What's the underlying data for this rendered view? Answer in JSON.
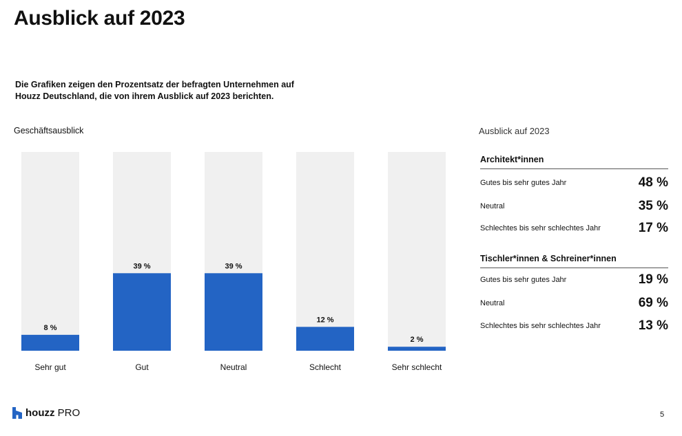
{
  "page": {
    "title": "Ausblick auf 2023",
    "subtitle_lines": [
      "Die Grafiken zeigen den Prozentsatz der befragten Unternehmen auf",
      "Houzz Deutschland, die von ihrem Ausblick auf 2023 berichten."
    ],
    "chart_label": "Geschäftsausblick",
    "page_number": "5"
  },
  "colors": {
    "bar": "#2364c4",
    "bar_track": "#f0f0f0"
  },
  "chart_data": {
    "type": "bar",
    "categories": [
      "Sehr gut",
      "Gut",
      "Neutral",
      "Schlecht",
      "Sehr schlecht"
    ],
    "values": [
      8,
      39,
      39,
      12,
      2
    ],
    "value_labels": [
      "8 %",
      "39 %",
      "39 %",
      "12 %",
      "2 %"
    ],
    "ylim": [
      0,
      100
    ],
    "grid": false
  },
  "panel": {
    "title": "Ausblick auf 2023",
    "groups": [
      {
        "title": "Architekt*innen",
        "rows": [
          {
            "label": "Gutes bis sehr gutes Jahr",
            "value": "48 %"
          },
          {
            "label": "Neutral",
            "value": "35 %"
          },
          {
            "label": "Schlechtes bis sehr schlechtes Jahr",
            "value": "17 %"
          }
        ]
      },
      {
        "title": "Tischler*innen & Schreiner*innen",
        "rows": [
          {
            "label": "Gutes bis sehr gutes Jahr",
            "value": "19 %"
          },
          {
            "label": "Neutral",
            "value": "69 %"
          },
          {
            "label": "Schlechtes bis sehr schlechtes Jahr",
            "value": "13 %"
          }
        ]
      }
    ]
  },
  "logo": {
    "icon": "houzz-house-icon",
    "brand": "houzz",
    "suffix": "PRO"
  }
}
